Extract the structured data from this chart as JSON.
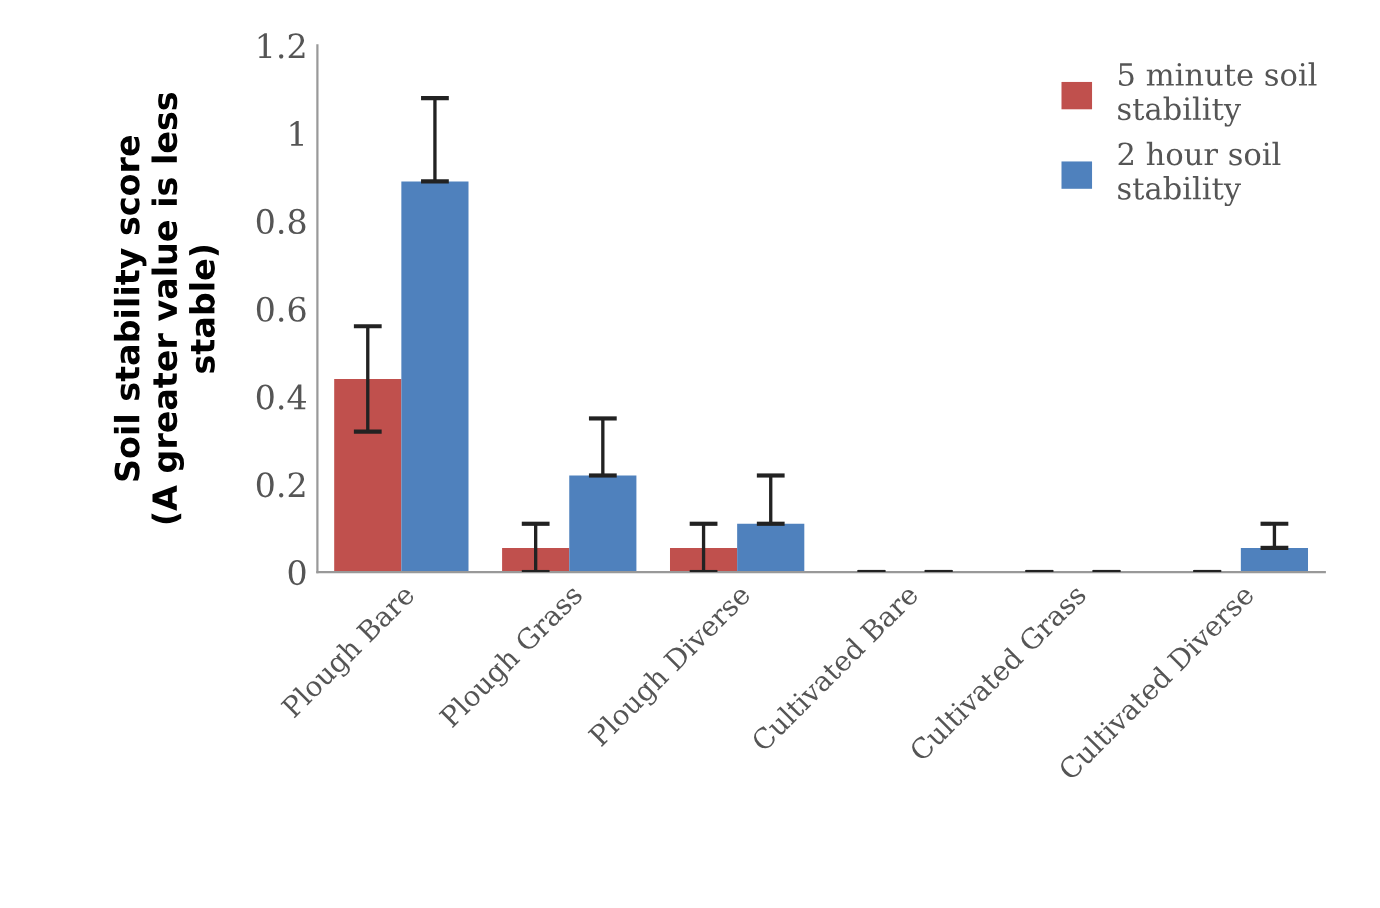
{
  "chart_data": {
    "type": "bar",
    "ylabel": "Soil stability score\n(A greater value is less\nstable)",
    "categories": [
      "Plough Bare",
      "Plough Grass",
      "Plough Diverse",
      "Cultivated Bare",
      "Cultivated Grass",
      "Cultivated Diverse"
    ],
    "series": [
      {
        "name": "5 minute soil\nstability",
        "color": "#c0504d",
        "values": [
          0.44,
          0.055,
          0.055,
          0,
          0,
          0
        ],
        "errors": [
          0.12,
          0.055,
          0.055,
          0,
          0,
          0
        ]
      },
      {
        "name": "2 hour soil\nstability",
        "color": "#4f81bd",
        "values": [
          0.89,
          0.22,
          0.11,
          0,
          0,
          0.055
        ],
        "errors": [
          [
            0.89,
            1.08
          ],
          [
            0.22,
            0.35
          ],
          [
            0.11,
            0.22
          ],
          0,
          0,
          [
            0.055,
            0.11
          ]
        ]
      }
    ],
    "ylim": [
      0,
      1.2
    ],
    "yticks": [
      0,
      0.2,
      0.4,
      0.6,
      0.8,
      1,
      1.2
    ],
    "grid": false,
    "legend": "top right"
  }
}
